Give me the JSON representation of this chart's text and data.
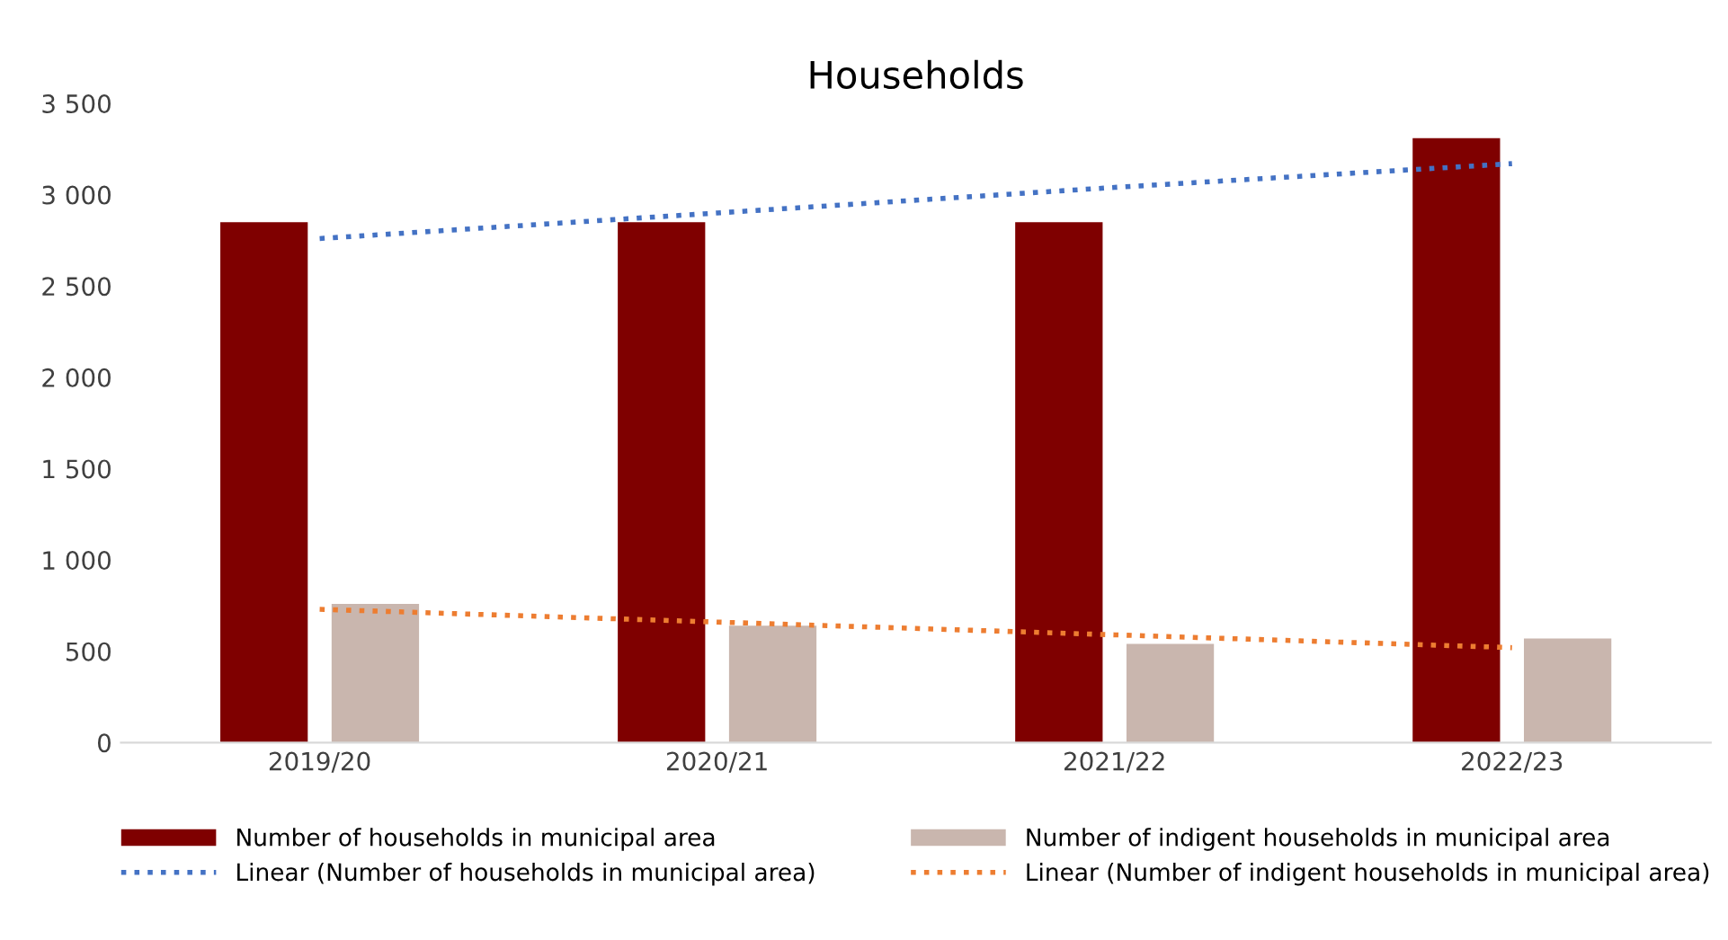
{
  "chart_data": {
    "type": "bar",
    "title": "Households",
    "categories": [
      "2019/20",
      "2020/21",
      "2021/22",
      "2022/23"
    ],
    "series": [
      {
        "name": "Number of households in municipal area",
        "color": "#7f0000",
        "values": [
          2850,
          2850,
          2850,
          3310
        ]
      },
      {
        "name": "Number of indigent households in municipal area",
        "color": "#c9b6ae",
        "values": [
          760,
          640,
          540,
          570
        ]
      },
      {
        "name": "Linear (Number of households in municipal area)",
        "type": "line",
        "color": "#4472c4",
        "line_style": "dotted",
        "values": [
          2760,
          2900,
          3040,
          3170
        ]
      },
      {
        "name": "Linear (Number of indigent households in municipal area)",
        "type": "line",
        "color": "#ed7d31",
        "line_style": "dotted",
        "values": [
          730,
          660,
          590,
          520
        ]
      }
    ],
    "ylim": [
      0,
      3500
    ],
    "yticks": [
      0,
      {
        "value": 500,
        "label": "500"
      },
      {
        "value": 1000,
        "label": "1 000"
      },
      {
        "value": 1500,
        "label": "1 500"
      },
      {
        "value": 2000,
        "label": "2 000"
      },
      {
        "value": 2500,
        "label": "2 500"
      },
      {
        "value": 3000,
        "label": "3 000"
      },
      {
        "value": 3500,
        "label": "3 500"
      }
    ],
    "grid": false,
    "legend": "bottom"
  }
}
